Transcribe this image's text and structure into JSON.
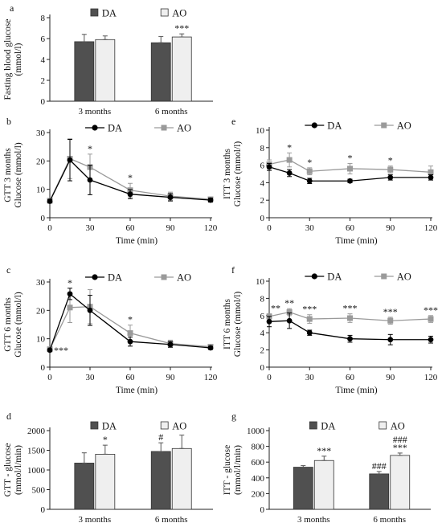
{
  "colors": {
    "da_bar": "#505050",
    "ao_bar": "#efefef",
    "da_line": "#000000",
    "ao_line": "#9a9a9a",
    "axis": "#222222"
  },
  "chart_data": [
    {
      "id": "a",
      "panel": "a",
      "type": "bar",
      "ylabel": "Fasting blood glucose (mmol/l)",
      "ylim": [
        0,
        8
      ],
      "yticks": [
        0,
        2,
        4,
        6,
        8
      ],
      "categories": [
        "3 months",
        "6 months"
      ],
      "legend": {
        "position": "top"
      },
      "series": [
        {
          "name": "DA",
          "values": [
            5.7,
            5.6
          ],
          "errors": [
            0.7,
            0.6
          ],
          "marks": [
            "",
            ""
          ]
        },
        {
          "name": "AO",
          "values": [
            5.9,
            6.15
          ],
          "errors": [
            0.35,
            0.3
          ],
          "marks": [
            "",
            "***"
          ]
        }
      ]
    },
    {
      "id": "b",
      "panel": "b",
      "type": "line",
      "ylabel": "GTT 3 months Glucose (mmol/l)",
      "xlabel": "Time (min)",
      "xlim": [
        0,
        120
      ],
      "xticks": [
        0,
        30,
        60,
        90,
        120
      ],
      "ylim": [
        0,
        30
      ],
      "yticks": [
        0,
        10,
        20,
        30
      ],
      "legend": {
        "position": "top"
      },
      "series": [
        {
          "name": "DA",
          "marker": "circle",
          "x": [
            0,
            15,
            30,
            60,
            90,
            120
          ],
          "y": [
            5.8,
            20.3,
            13.3,
            8.3,
            7.2,
            6.2
          ],
          "errors": [
            0.6,
            7.3,
            5.2,
            1.6,
            1.3,
            0.7
          ],
          "marks": [
            "",
            "",
            "",
            "",
            "",
            ""
          ]
        },
        {
          "name": "AO",
          "marker": "square",
          "x": [
            0,
            15,
            30,
            60,
            90,
            120
          ],
          "y": [
            6.0,
            20.8,
            17.8,
            9.7,
            7.6,
            6.5
          ],
          "errors": [
            0.6,
            7.0,
            4.6,
            2.4,
            1.4,
            0.7
          ],
          "marks": [
            "",
            "",
            "*",
            "*",
            "",
            ""
          ]
        }
      ]
    },
    {
      "id": "c",
      "panel": "c",
      "type": "line",
      "ylabel": "GTT 6 months Glucose (mmol/l)",
      "xlabel": "Time (min)",
      "xlim": [
        0,
        120
      ],
      "xticks": [
        0,
        30,
        60,
        90,
        120
      ],
      "ylim": [
        0,
        30
      ],
      "yticks": [
        0,
        10,
        20,
        30
      ],
      "legend": {
        "position": "top"
      },
      "series": [
        {
          "name": "DA",
          "marker": "circle",
          "x": [
            0,
            15,
            30,
            60,
            90,
            120
          ],
          "y": [
            6.0,
            25.8,
            20.0,
            9.0,
            8.0,
            6.8
          ],
          "errors": [
            0.4,
            2.0,
            5.3,
            1.6,
            1.0,
            0.6
          ],
          "marks": [
            "***",
            "*",
            "",
            "",
            "",
            ""
          ]
        },
        {
          "name": "AO",
          "marker": "square",
          "x": [
            0,
            15,
            30,
            60,
            90,
            120
          ],
          "y": [
            6.3,
            21.0,
            21.3,
            12.0,
            8.3,
            7.2
          ],
          "errors": [
            0.4,
            5.3,
            6.0,
            2.8,
            1.2,
            0.7
          ],
          "marks": [
            "",
            "",
            "",
            "*",
            "",
            ""
          ]
        }
      ]
    },
    {
      "id": "d",
      "panel": "d",
      "type": "bar",
      "ylabel": "GTT - glucose (mmol/l/min)",
      "ylim": [
        0,
        2000
      ],
      "yticks": [
        0,
        500,
        1000,
        1500,
        2000
      ],
      "categories": [
        "3 months",
        "6 months"
      ],
      "legend": {
        "position": "top"
      },
      "series": [
        {
          "name": "DA",
          "values": [
            1175,
            1470
          ],
          "errors": [
            260,
            220
          ],
          "marks": [
            "",
            "#"
          ]
        },
        {
          "name": "AO",
          "values": [
            1400,
            1545
          ],
          "errors": [
            230,
            340
          ],
          "marks": [
            "*",
            ""
          ]
        }
      ]
    },
    {
      "id": "e",
      "panel": "e",
      "type": "line",
      "ylabel": "ITT 3 months Glucose (mmol/l)",
      "xlabel": "Time (min)",
      "xlim": [
        0,
        120
      ],
      "xticks": [
        0,
        30,
        60,
        90,
        120
      ],
      "ylim": [
        0,
        10
      ],
      "yticks": [
        0,
        2,
        4,
        6,
        8,
        10
      ],
      "legend": {
        "position": "top"
      },
      "series": [
        {
          "name": "DA",
          "marker": "circle",
          "x": [
            0,
            15,
            30,
            60,
            90,
            120
          ],
          "y": [
            5.8,
            5.1,
            4.2,
            4.2,
            4.6,
            4.6
          ],
          "errors": [
            0.4,
            0.4,
            0.3,
            0.2,
            0.3,
            0.3
          ],
          "marks": [
            "",
            "",
            "",
            "",
            "",
            ""
          ]
        },
        {
          "name": "AO",
          "marker": "square",
          "x": [
            0,
            15,
            30,
            60,
            90,
            120
          ],
          "y": [
            6.1,
            6.6,
            5.3,
            5.6,
            5.5,
            5.2
          ],
          "errors": [
            0.5,
            0.8,
            0.4,
            0.6,
            0.4,
            0.7
          ],
          "marks": [
            "",
            "*",
            "*",
            "*",
            "*",
            ""
          ]
        }
      ]
    },
    {
      "id": "f",
      "panel": "f",
      "type": "line",
      "ylabel": "ITT 6 months Glucose (mmol/l)",
      "xlabel": "Time (min)",
      "xlim": [
        0,
        120
      ],
      "xticks": [
        0,
        30,
        60,
        90,
        120
      ],
      "ylim": [
        0,
        10
      ],
      "yticks": [
        0,
        2,
        4,
        6,
        8,
        10
      ],
      "legend": {
        "position": "top"
      },
      "series": [
        {
          "name": "DA",
          "marker": "circle",
          "x": [
            0,
            15,
            30,
            60,
            90,
            120
          ],
          "y": [
            5.3,
            5.4,
            4.0,
            3.3,
            3.2,
            3.2
          ],
          "errors": [
            0.6,
            0.9,
            0.3,
            0.4,
            0.6,
            0.4
          ],
          "marks": [
            "",
            "",
            "",
            "",
            "",
            ""
          ]
        },
        {
          "name": "AO",
          "marker": "square",
          "x": [
            0,
            15,
            30,
            60,
            90,
            120
          ],
          "y": [
            5.9,
            6.4,
            5.6,
            5.7,
            5.4,
            5.6
          ],
          "errors": [
            0.3,
            0.4,
            0.5,
            0.5,
            0.4,
            0.4
          ],
          "marks": [
            "**",
            "**",
            "***",
            "***",
            "***",
            "***"
          ]
        }
      ]
    },
    {
      "id": "g",
      "panel": "g",
      "type": "bar",
      "ylabel": "ITT - glucose (mmol/l/min)",
      "ylim": [
        0,
        1000
      ],
      "yticks": [
        0,
        200,
        400,
        600,
        800,
        1000
      ],
      "categories": [
        "3 months",
        "6 months"
      ],
      "legend": {
        "position": "top"
      },
      "series": [
        {
          "name": "DA",
          "values": [
            535,
            450
          ],
          "errors": [
            20,
            30
          ],
          "marks": [
            "",
            "###"
          ]
        },
        {
          "name": "AO",
          "values": [
            620,
            685
          ],
          "errors": [
            55,
            30
          ],
          "marks": [
            "***",
            "###\n***"
          ]
        }
      ]
    }
  ]
}
